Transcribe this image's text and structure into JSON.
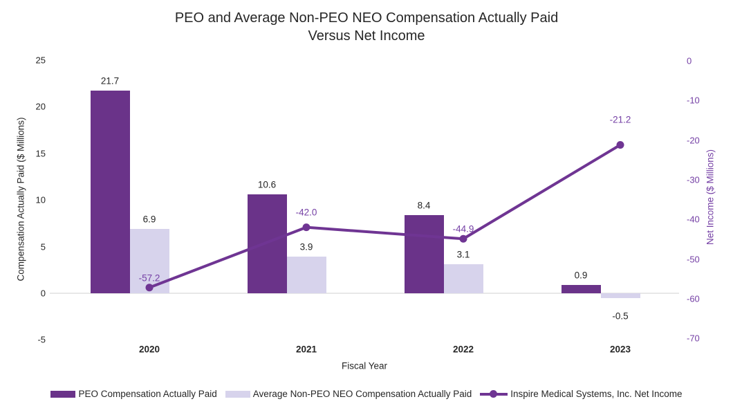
{
  "title_lines": [
    "PEO and Average Non-PEO NEO Compensation Actually Paid",
    "Versus Net Income"
  ],
  "colors": {
    "peo_bar": "#6a3389",
    "neo_bar": "#d7d3ec",
    "line": "#6f3593",
    "purple_text": "#7540a5",
    "dark_text": "#262626",
    "zero_line": "#e8e8e8"
  },
  "chart_data": {
    "type": "bar+line combo",
    "categories": [
      "2020",
      "2021",
      "2022",
      "2023"
    ],
    "series": [
      {
        "name": "PEO Compensation Actually Paid",
        "type": "bar",
        "axis": "left",
        "values": [
          21.7,
          10.6,
          8.4,
          0.9
        ]
      },
      {
        "name": "Average Non-PEO NEO Compensation Actually Paid",
        "type": "bar",
        "axis": "left",
        "values": [
          6.9,
          3.9,
          3.1,
          -0.5
        ]
      },
      {
        "name": "Inspire Medical Systems, Inc. Net Income",
        "type": "line",
        "axis": "right",
        "values": [
          -57.2,
          -42.0,
          -44.9,
          -21.2
        ]
      }
    ],
    "xlabel": "Fiscal Year",
    "left_axis": {
      "label": "Compensation Actually Paid ($ Millions)",
      "ticks": [
        25,
        20,
        15,
        10,
        5,
        0,
        -5
      ],
      "min": -5,
      "max": 25
    },
    "right_axis": {
      "label": "Net Income ($ Millions)",
      "ticks": [
        0,
        -10,
        -20,
        -30,
        -40,
        -50,
        -60,
        -70
      ],
      "min": -70,
      "max": 0
    },
    "grid": "zero-line-only",
    "legend_position": "bottom",
    "data_labels": "shown, one decimal place"
  }
}
